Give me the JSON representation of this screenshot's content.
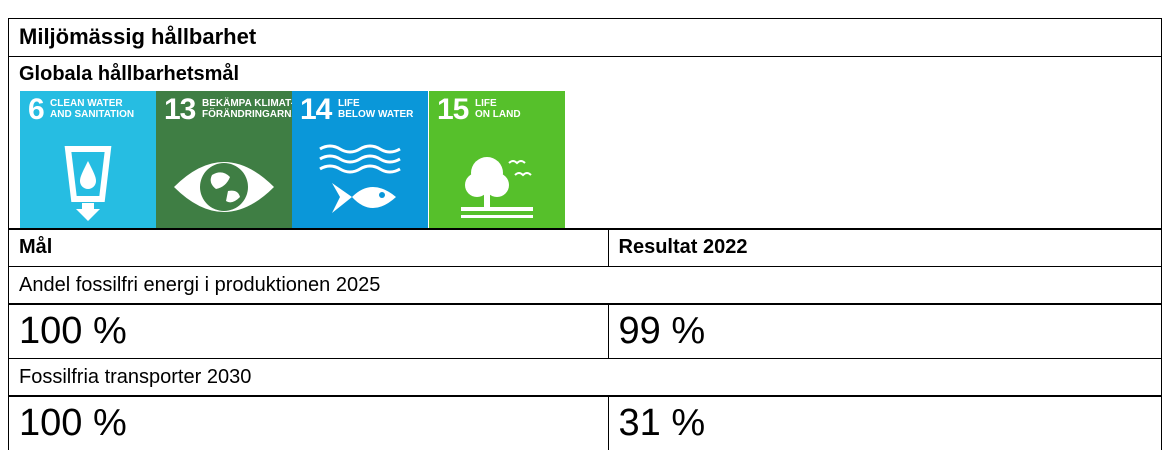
{
  "header": {
    "title": "Miljömässig hållbarhet"
  },
  "section": {
    "title": "Globala hållbarhetsmål"
  },
  "goals": [
    {
      "number": "6",
      "label": [
        "CLEAN WATER",
        "AND SANITATION"
      ]
    },
    {
      "number": "13",
      "label": [
        "BEKÄMPA KLIMAT-",
        "FÖRÄNDRINGARNA"
      ]
    },
    {
      "number": "14",
      "label": [
        "LIFE",
        "BELOW WATER"
      ]
    },
    {
      "number": "15",
      "label": [
        "LIFE",
        "ON LAND"
      ]
    }
  ],
  "table": {
    "columns": [
      "Mål",
      "Resultat 2022"
    ],
    "rows": [
      {
        "label": "Andel fossilfri energi i produktionen 2025",
        "target": "100 %",
        "result": "99 %"
      },
      {
        "label": "Fossilfria transporter 2030",
        "target": "100 %",
        "result": "31 %"
      }
    ]
  }
}
